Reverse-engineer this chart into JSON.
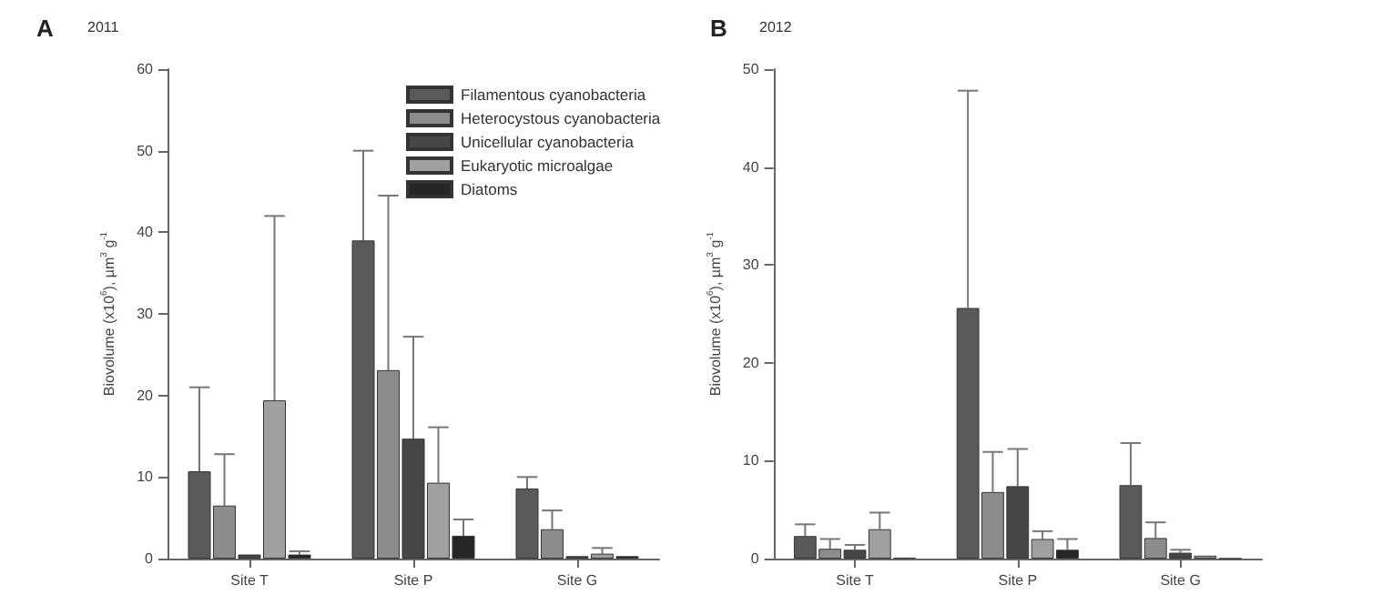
{
  "chart_data": [
    {
      "type": "bar",
      "title": "A",
      "subtitle": "2011",
      "ylabel": "Biovolume (x10$^{6}$), µm$^{3}$ g$^{-1}$",
      "categories": [
        "Site T",
        "Site P",
        "Site G"
      ],
      "ylim": [
        0,
        60
      ],
      "yticks": [
        0,
        10,
        20,
        30,
        40,
        50,
        60
      ],
      "grid": false,
      "legend": "top right",
      "series": [
        {
          "name": "Filamentous cyanobacteria",
          "color": "#5a5a5a",
          "values": [
            10.7,
            39,
            8.6
          ],
          "errors": [
            [
              10.7,
              21
            ],
            [
              39,
              50
            ],
            [
              8.6,
              10
            ]
          ]
        },
        {
          "name": "Heterocystous cyanobacteria",
          "color": "#8c8c8c",
          "values": [
            6.5,
            23.1,
            3.6
          ],
          "errors": [
            [
              6.5,
              12.8
            ],
            [
              23.1,
              44.5
            ],
            [
              3.6,
              5.9
            ]
          ]
        },
        {
          "name": "Unicellular cyanobacteria",
          "color": "#474747",
          "values": [
            0.5,
            14.7,
            0.3
          ],
          "errors": [
            null,
            [
              14.7,
              27.2
            ],
            null
          ]
        },
        {
          "name": "Eukaryotic microalgae",
          "color": "#a0a0a0",
          "values": [
            19.4,
            9.3,
            0.6
          ],
          "errors": [
            [
              19.4,
              42
            ],
            [
              9.3,
              16.1
            ],
            [
              0.6,
              1.3
            ]
          ]
        },
        {
          "name": "Diatoms",
          "color": "#262626",
          "values": [
            0.5,
            2.8,
            0.3
          ],
          "errors": [
            [
              0.5,
              0.9
            ],
            [
              2.8,
              4.8
            ],
            null
          ]
        }
      ]
    },
    {
      "type": "bar",
      "title": "B",
      "subtitle": "2012",
      "ylabel": "Biovolume (x10$^{6}$), µm$^{3}$ g$^{-1}$",
      "categories": [
        "Site T",
        "Site P",
        "Site G"
      ],
      "ylim": [
        0,
        50
      ],
      "yticks": [
        0,
        10,
        20,
        30,
        40,
        50
      ],
      "grid": false,
      "series": [
        {
          "color": "#5a5a5a",
          "values": [
            2.3,
            25.6,
            7.5
          ],
          "errors": [
            [
              2.3,
              3.5
            ],
            [
              25.6,
              47.8
            ],
            [
              7.5,
              11.8
            ]
          ]
        },
        {
          "color": "#8c8c8c",
          "values": [
            1.0,
            6.8,
            2.1
          ],
          "errors": [
            [
              1.0,
              2.0
            ],
            [
              6.8,
              10.9
            ],
            [
              2.1,
              3.7
            ]
          ]
        },
        {
          "color": "#474747",
          "values": [
            0.9,
            7.4,
            0.6
          ],
          "errors": [
            [
              0.9,
              1.4
            ],
            [
              7.4,
              11.2
            ],
            [
              0.6,
              0.9
            ]
          ]
        },
        {
          "color": "#a0a0a0",
          "values": [
            3.0,
            2.0,
            0.3
          ],
          "errors": [
            [
              3.0,
              4.7
            ],
            [
              2.0,
              2.8
            ],
            null
          ]
        },
        {
          "color": "#262626",
          "values": [
            0.1,
            0.9,
            0
          ],
          "errors": [
            null,
            [
              0.9,
              2.0
            ],
            null
          ]
        }
      ]
    }
  ]
}
